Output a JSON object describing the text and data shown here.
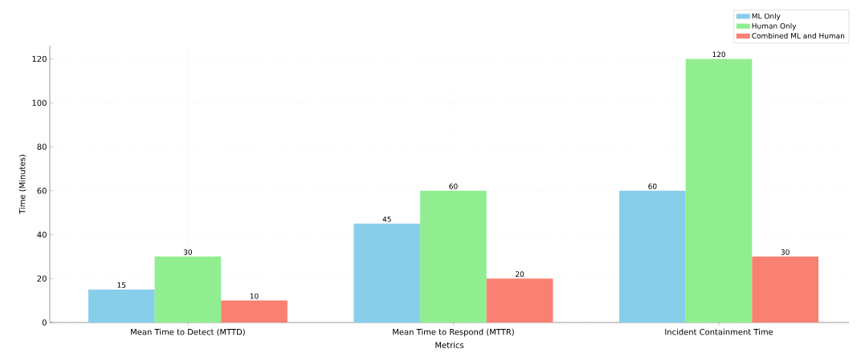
{
  "chart_data": {
    "type": "bar",
    "xlabel": "Metrics",
    "ylabel": "Time (Minutes)",
    "categories": [
      "Mean Time to Detect (MTTD)",
      "Mean Time to Respond (MTTR)",
      "Incident Containment Time"
    ],
    "series": [
      {
        "name": "ML Only",
        "color": "#87ceeb",
        "values": [
          15,
          45,
          60
        ]
      },
      {
        "name": "Human Only",
        "color": "#90ee90",
        "values": [
          30,
          60,
          120
        ]
      },
      {
        "name": "Combined ML and Human",
        "color": "#fa8072",
        "values": [
          10,
          20,
          30
        ]
      }
    ],
    "ylim": [
      0,
      126
    ],
    "yticks": [
      0,
      20,
      40,
      60,
      80,
      100,
      120
    ],
    "grid": true,
    "legend": "top right",
    "data_labels": true
  }
}
